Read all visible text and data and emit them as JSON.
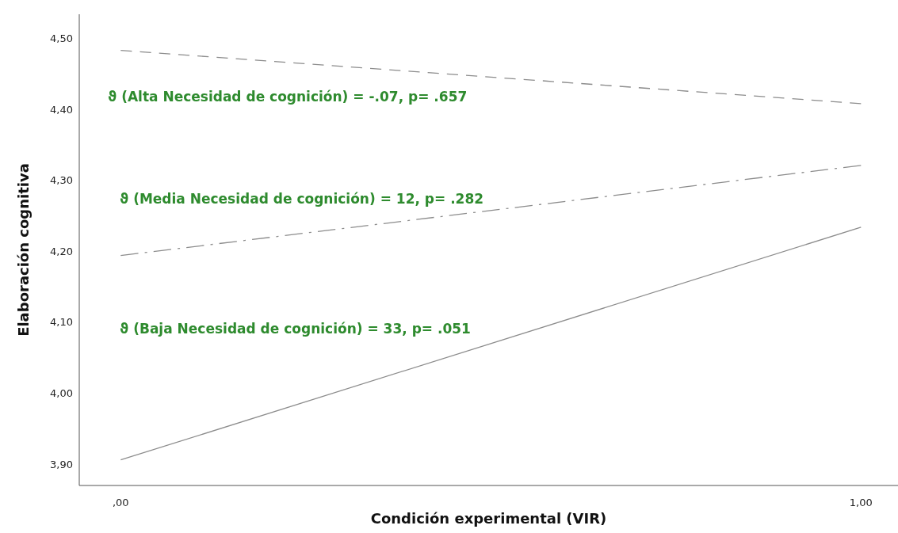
{
  "chart_data": {
    "type": "line",
    "xlabel": "Condición experimental (VIR)",
    "ylabel": "Elaboración cognitiva",
    "x": [
      0,
      1
    ],
    "series": [
      {
        "color": "#8c8c8c",
        "values": [
          4.483,
          4.408
        ],
        "line_style": "dashed"
      },
      {
        "color": "#8c8c8c",
        "values": [
          4.194,
          4.321
        ],
        "line_style": "dashdot"
      },
      {
        "color": "#8c8c8c",
        "values": [
          3.906,
          4.234
        ],
        "line_style": "solid"
      }
    ],
    "xlim": [
      -0.056,
      1.05
    ],
    "ylim": [
      3.87,
      4.534
    ],
    "xticks": [
      {
        "value": 0,
        "label": ",00"
      },
      {
        "value": 1,
        "label": "1,00"
      }
    ],
    "yticks": [
      {
        "value": 3.9,
        "label": "3,90"
      },
      {
        "value": 4.0,
        "label": "4,00"
      },
      {
        "value": 4.1,
        "label": "4,10"
      },
      {
        "value": 4.2,
        "label": "4,20"
      },
      {
        "value": 4.3,
        "label": "4,30"
      },
      {
        "value": 4.4,
        "label": "4,40"
      },
      {
        "value": 4.5,
        "label": "4,50"
      }
    ],
    "annotations": [
      "ϑ (Alta Necesidad de cognición) = -.07, p= .657",
      "ϑ (Media Necesidad de cognición) = 12, p= .282",
      "ϑ (Baja Necesidad de cognición) = 33, p= .051"
    ],
    "grid": false
  }
}
